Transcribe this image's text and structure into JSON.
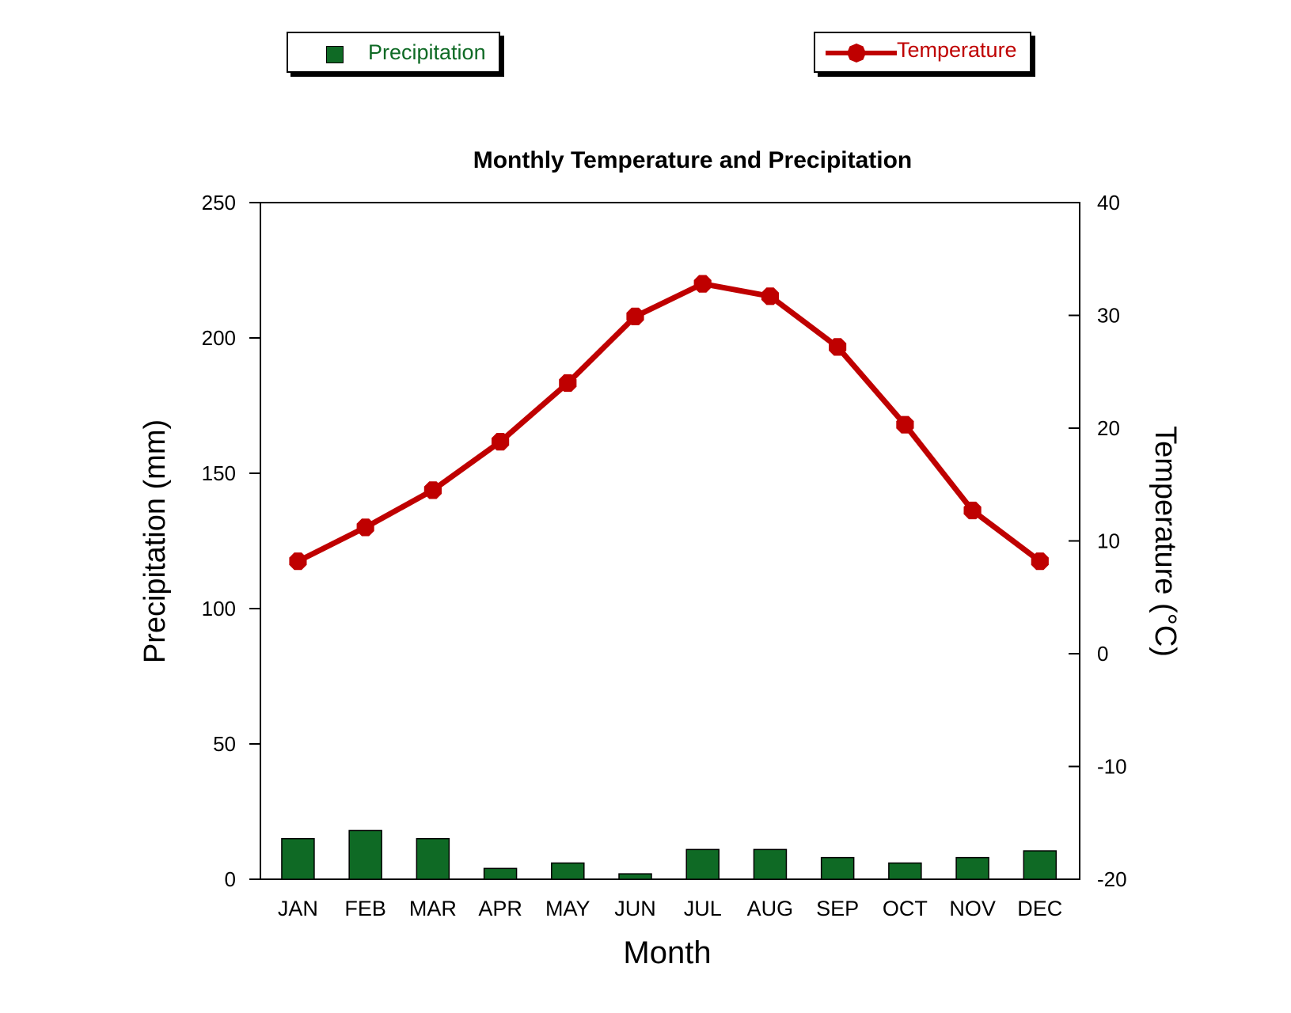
{
  "legend": {
    "precipitation_label": "Precipitation",
    "temperature_label": "Temperature"
  },
  "colors": {
    "bar": "#0f6a25",
    "line": "#bf0000",
    "precipitation_text": "#0f6a25",
    "temperature_text": "#bf0000"
  },
  "chart_data": {
    "type": "bar+line",
    "title": "Monthly Temperature and Precipitation",
    "xlabel": "Month",
    "ylabel_left": "Precipitation (mm)",
    "ylabel_right": "Temperature (°C)",
    "categories": [
      "JAN",
      "FEB",
      "MAR",
      "APR",
      "MAY",
      "JUN",
      "JUL",
      "AUG",
      "SEP",
      "OCT",
      "NOV",
      "DEC"
    ],
    "y_left": {
      "min": 0,
      "max": 250,
      "ticks": [
        0,
        50,
        100,
        150,
        200,
        250
      ]
    },
    "y_right": {
      "min": -20,
      "max": 40,
      "ticks": [
        -20,
        -10,
        0,
        10,
        20,
        30,
        40
      ]
    },
    "series": [
      {
        "name": "Precipitation",
        "type": "bar",
        "axis": "left",
        "values": [
          15,
          18,
          15,
          4,
          6,
          2,
          11,
          11,
          8,
          6,
          8,
          10.5
        ]
      },
      {
        "name": "Temperature",
        "type": "line",
        "axis": "right",
        "values": [
          8.2,
          11.2,
          14.5,
          18.8,
          24,
          29.9,
          32.8,
          31.7,
          27.2,
          20.3,
          12.7,
          8.2
        ]
      }
    ],
    "grid": false,
    "legend_position": "top"
  }
}
